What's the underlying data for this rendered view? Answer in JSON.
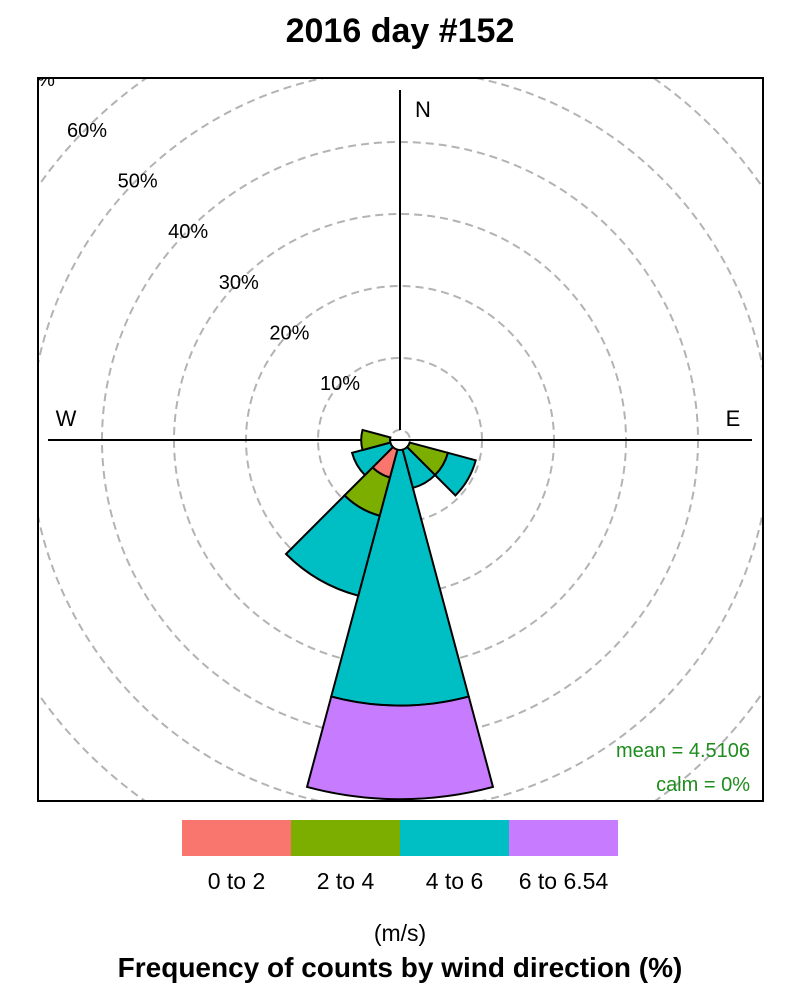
{
  "title": "2016 day #152",
  "units": "(m/s)",
  "caption": "Frequency of counts by wind direction (%)",
  "stats": {
    "mean": "mean = 4.5106",
    "calm": "calm = 0%",
    "color": "#1e8c1e"
  },
  "chart_data": {
    "type": "windrose",
    "direction_labels": [
      "N",
      "E",
      "W"
    ],
    "radial_ticks": [
      10,
      20,
      30,
      40,
      50,
      60
    ],
    "radial_tick_labels": [
      "10%",
      "20%",
      "30%",
      "40%",
      "50%",
      "60%"
    ],
    "radial_axis_label": "%",
    "speed_bins": [
      {
        "label": "0 to 2",
        "color": "#F8766D"
      },
      {
        "label": "2 to 4",
        "color": "#7CAE00"
      },
      {
        "label": "4 to 6",
        "color": "#00BFC4"
      },
      {
        "label": "6 to 6.54",
        "color": "#C77CFF"
      }
    ],
    "sectors": [
      {
        "direction": 120,
        "cumulative": [
          0,
          5.5,
          9.5,
          9.5
        ]
      },
      {
        "direction": 150,
        "cumulative": [
          0,
          0,
          5.5,
          5.5
        ]
      },
      {
        "direction": 180,
        "cumulative": [
          0,
          0,
          35.5,
          48.5
        ]
      },
      {
        "direction": 210,
        "cumulative": [
          4.0,
          9.5,
          21.0,
          21.0
        ]
      },
      {
        "direction": 240,
        "cumulative": [
          0,
          0,
          5.5,
          5.5
        ]
      },
      {
        "direction": 270,
        "cumulative": [
          0,
          4.0,
          4.0,
          4.0
        ]
      }
    ]
  }
}
